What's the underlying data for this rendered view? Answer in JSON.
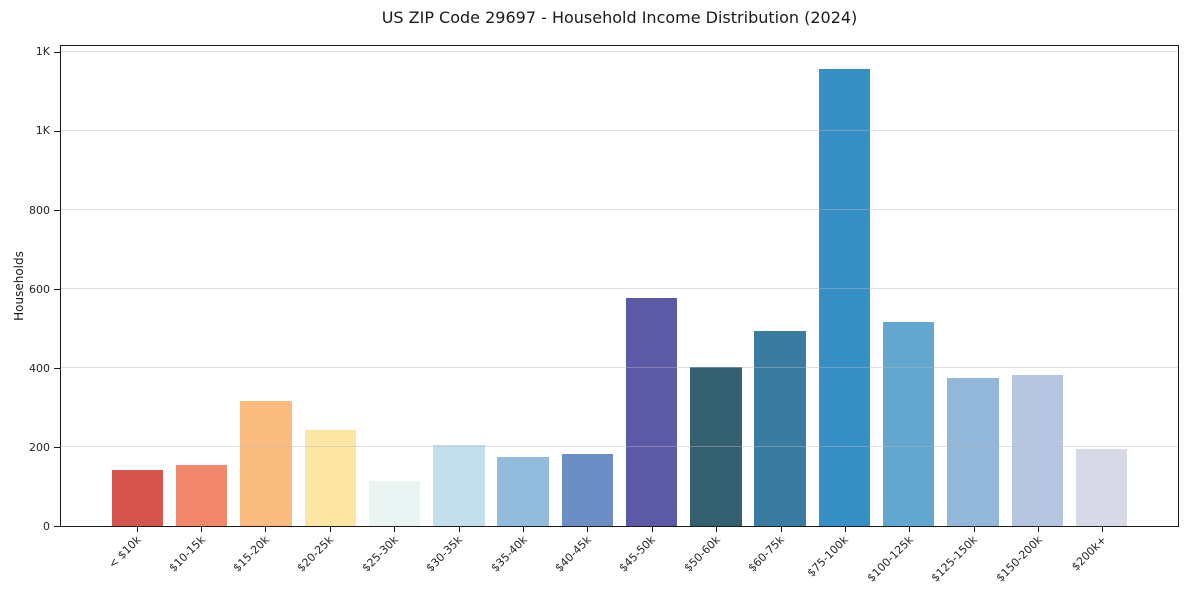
{
  "chart_data": {
    "type": "bar",
    "title": "US ZIP Code 29697 - Household Income Distribution (2024)",
    "xlabel": "",
    "ylabel": "Households",
    "categories": [
      "< $10k",
      "$10-15k",
      "$15-20k",
      "$20-25k",
      "$25-30k",
      "$30-35k",
      "$35-40k",
      "$40-45k",
      "$45-50k",
      "$50-60k",
      "$60-75k",
      "$75-100k",
      "$100-125k",
      "$125-150k",
      "$150-200k",
      "$200k+"
    ],
    "values": [
      143,
      154,
      317,
      242,
      113,
      204,
      175,
      182,
      576,
      403,
      494,
      1157,
      516,
      375,
      383,
      194
    ],
    "bar_colors": [
      "#d6544e",
      "#f1886b",
      "#fbbc7f",
      "#fde5a4",
      "#eaf4f2",
      "#c2e0ec",
      "#93bcdc",
      "#6b8ec5",
      "#5c59a7",
      "#35606f",
      "#3a7ca1",
      "#368fc5",
      "#62a7ce",
      "#93b7d8",
      "#b7c6e0",
      "#d8d9e7"
    ],
    "ylim": [
      0,
      1215
    ],
    "yticks": [
      {
        "value": 0,
        "label": "0"
      },
      {
        "value": 200,
        "label": "200"
      },
      {
        "value": 400,
        "label": "400"
      },
      {
        "value": 600,
        "label": "600"
      },
      {
        "value": 800,
        "label": "800"
      },
      {
        "value": 1000,
        "label": "1K"
      },
      {
        "value": 1200,
        "label": "1K"
      }
    ],
    "grid": true,
    "legend": null,
    "legend_position": "none"
  }
}
